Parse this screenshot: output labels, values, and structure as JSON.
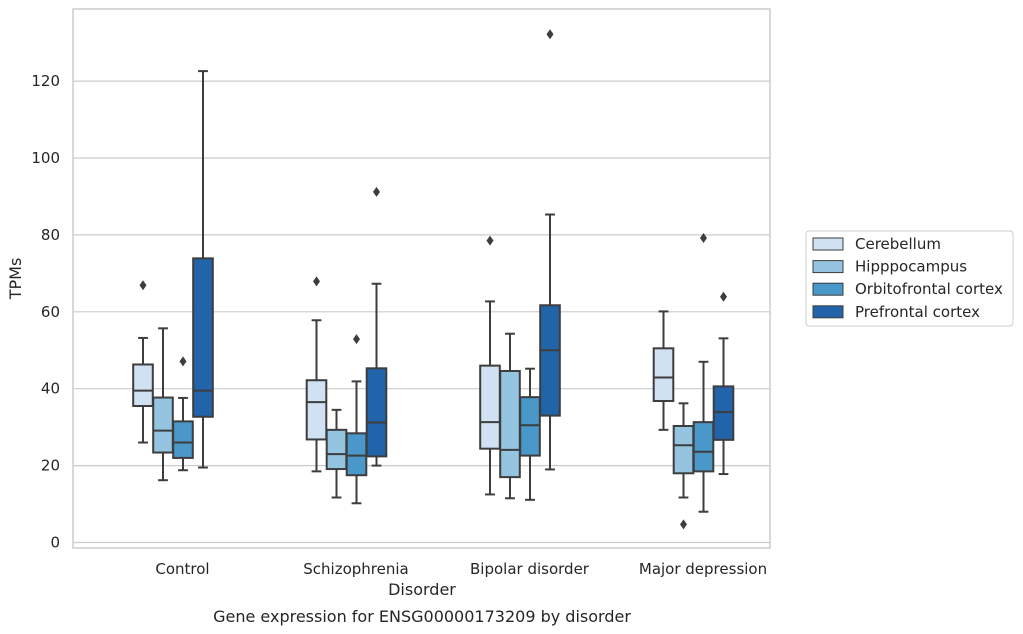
{
  "caption": "Gene expression for ENSG00000173209 by disorder",
  "chart_data": {
    "type": "box",
    "xlabel": "Disorder",
    "ylabel": "TPMs",
    "ylim": [
      -1.5,
      139.5
    ],
    "yticks": [
      0,
      20,
      40,
      60,
      80,
      100,
      120
    ],
    "grid": "horizontal",
    "legend_position": "right",
    "categories": [
      "Control",
      "Schizophrenia",
      "Bipolar disorder",
      "Major depression"
    ],
    "series": [
      {
        "name": "Cerebellum",
        "color": "#d0e1f2",
        "boxes": [
          {
            "whisker_low": 26,
            "q1": 35.5,
            "median": 39.5,
            "q3": 46.3,
            "whisker_high": 53.2,
            "outliers": [
              66.9
            ]
          },
          {
            "whisker_low": 18.5,
            "q1": 26.8,
            "median": 36.5,
            "q3": 42.2,
            "whisker_high": 57.8,
            "outliers": [
              67.9
            ]
          },
          {
            "whisker_low": 12.5,
            "q1": 24.4,
            "median": 31.3,
            "q3": 46.0,
            "whisker_high": 62.7,
            "outliers": [
              78.5
            ]
          },
          {
            "whisker_low": 29.3,
            "q1": 36.8,
            "median": 42.9,
            "q3": 50.5,
            "whisker_high": 60.1,
            "outliers": []
          }
        ]
      },
      {
        "name": "Hipppocampus",
        "color": "#94c4df",
        "boxes": [
          {
            "whisker_low": 16.2,
            "q1": 23.4,
            "median": 29.1,
            "q3": 37.7,
            "whisker_high": 55.7,
            "outliers": []
          },
          {
            "whisker_low": 11.7,
            "q1": 19.1,
            "median": 23.0,
            "q3": 29.3,
            "whisker_high": 34.5,
            "outliers": []
          },
          {
            "whisker_low": 11.5,
            "q1": 17.0,
            "median": 24.1,
            "q3": 44.6,
            "whisker_high": 54.3,
            "outliers": []
          },
          {
            "whisker_low": 11.7,
            "q1": 18.0,
            "median": 25.3,
            "q3": 30.3,
            "whisker_high": 36.2,
            "outliers": [
              4.7
            ]
          }
        ]
      },
      {
        "name": "Orbitofrontal cortex",
        "color": "#4a98c9",
        "boxes": [
          {
            "whisker_low": 18.8,
            "q1": 22.0,
            "median": 26.0,
            "q3": 31.5,
            "whisker_high": 37.6,
            "outliers": [
              47.1
            ]
          },
          {
            "whisker_low": 10.2,
            "q1": 17.5,
            "median": 22.6,
            "q3": 28.4,
            "whisker_high": 41.9,
            "outliers": [
              52.9
            ]
          },
          {
            "whisker_low": 11.1,
            "q1": 22.6,
            "median": 30.5,
            "q3": 37.8,
            "whisker_high": 45.2,
            "outliers": []
          },
          {
            "whisker_low": 8.0,
            "q1": 18.5,
            "median": 23.6,
            "q3": 31.3,
            "whisker_high": 47.0,
            "outliers": [
              79.2
            ]
          }
        ]
      },
      {
        "name": "Prefrontal cortex",
        "color": "#2264aa",
        "boxes": [
          {
            "whisker_low": 19.5,
            "q1": 32.7,
            "median": 39.5,
            "q3": 73.9,
            "whisker_high": 122.6,
            "outliers": []
          },
          {
            "whisker_low": 20.0,
            "q1": 22.4,
            "median": 31.2,
            "q3": 45.3,
            "whisker_high": 67.3,
            "outliers": [
              91.2
            ]
          },
          {
            "whisker_low": 19.0,
            "q1": 33.0,
            "median": 50.0,
            "q3": 61.7,
            "whisker_high": 85.3,
            "outliers": [
              132.2
            ]
          },
          {
            "whisker_low": 17.8,
            "q1": 26.7,
            "median": 33.9,
            "q3": 40.6,
            "whisker_high": 53.1,
            "outliers": [
              63.9
            ]
          }
        ]
      }
    ]
  }
}
